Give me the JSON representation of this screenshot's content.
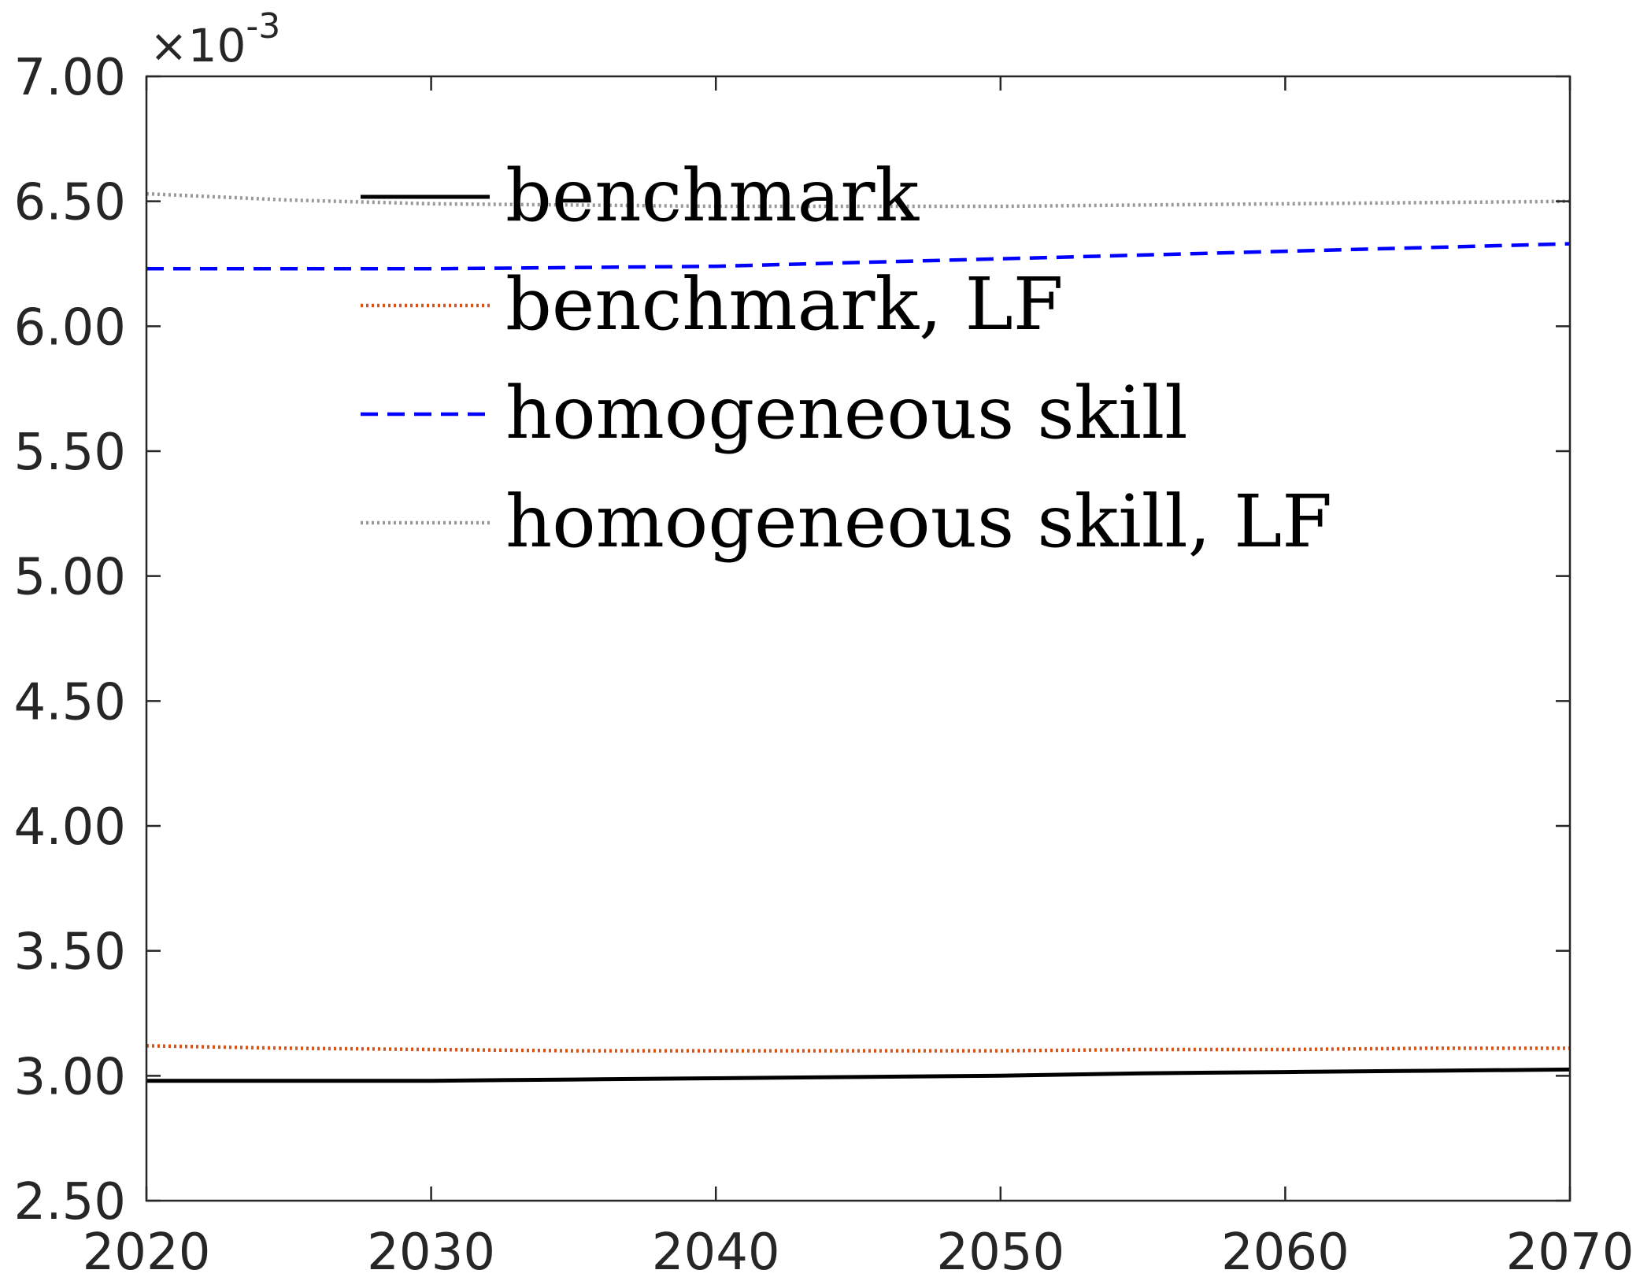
{
  "chart_data": {
    "type": "line",
    "title": "",
    "xlabel": "",
    "ylabel": "",
    "y_exponent_label": "×10",
    "y_exponent_power": "-3",
    "xlim": [
      2020,
      2070
    ],
    "ylim": [
      2.5,
      7.0
    ],
    "x_ticks": [
      2020,
      2030,
      2040,
      2050,
      2060,
      2070
    ],
    "x_tick_labels": [
      "2020",
      "2030",
      "2040",
      "2050",
      "2060",
      "2070"
    ],
    "y_ticks": [
      2.5,
      3.0,
      3.5,
      4.0,
      4.5,
      5.0,
      5.5,
      6.0,
      6.5,
      7.0
    ],
    "y_tick_labels": [
      "2.50",
      "3.00",
      "3.50",
      "4.00",
      "4.50",
      "5.00",
      "5.50",
      "6.00",
      "6.50",
      "7.00"
    ],
    "grid": false,
    "legend_position": "top",
    "x": [
      2020,
      2025,
      2030,
      2035,
      2040,
      2045,
      2050,
      2055,
      2060,
      2065,
      2070
    ],
    "series": [
      {
        "name": "benchmark",
        "color": "#000000",
        "style": "solid",
        "values": [
          2.98,
          2.98,
          2.98,
          2.985,
          2.99,
          2.995,
          3.0,
          3.01,
          3.015,
          3.02,
          3.025
        ]
      },
      {
        "name": "benchmark, LF",
        "color": "#d95319",
        "style": "dotted",
        "values": [
          3.12,
          3.11,
          3.105,
          3.1,
          3.1,
          3.1,
          3.1,
          3.105,
          3.105,
          3.11,
          3.11
        ]
      },
      {
        "name": "homogeneous skill",
        "color": "#0000ff",
        "style": "dashed",
        "values": [
          6.23,
          6.23,
          6.23,
          6.235,
          6.24,
          6.255,
          6.27,
          6.285,
          6.3,
          6.315,
          6.33
        ]
      },
      {
        "name": "homogeneous skill, LF",
        "color": "#999999",
        "style": "dotted",
        "values": [
          6.53,
          6.505,
          6.49,
          6.485,
          6.48,
          6.48,
          6.48,
          6.485,
          6.49,
          6.495,
          6.5
        ]
      }
    ]
  }
}
